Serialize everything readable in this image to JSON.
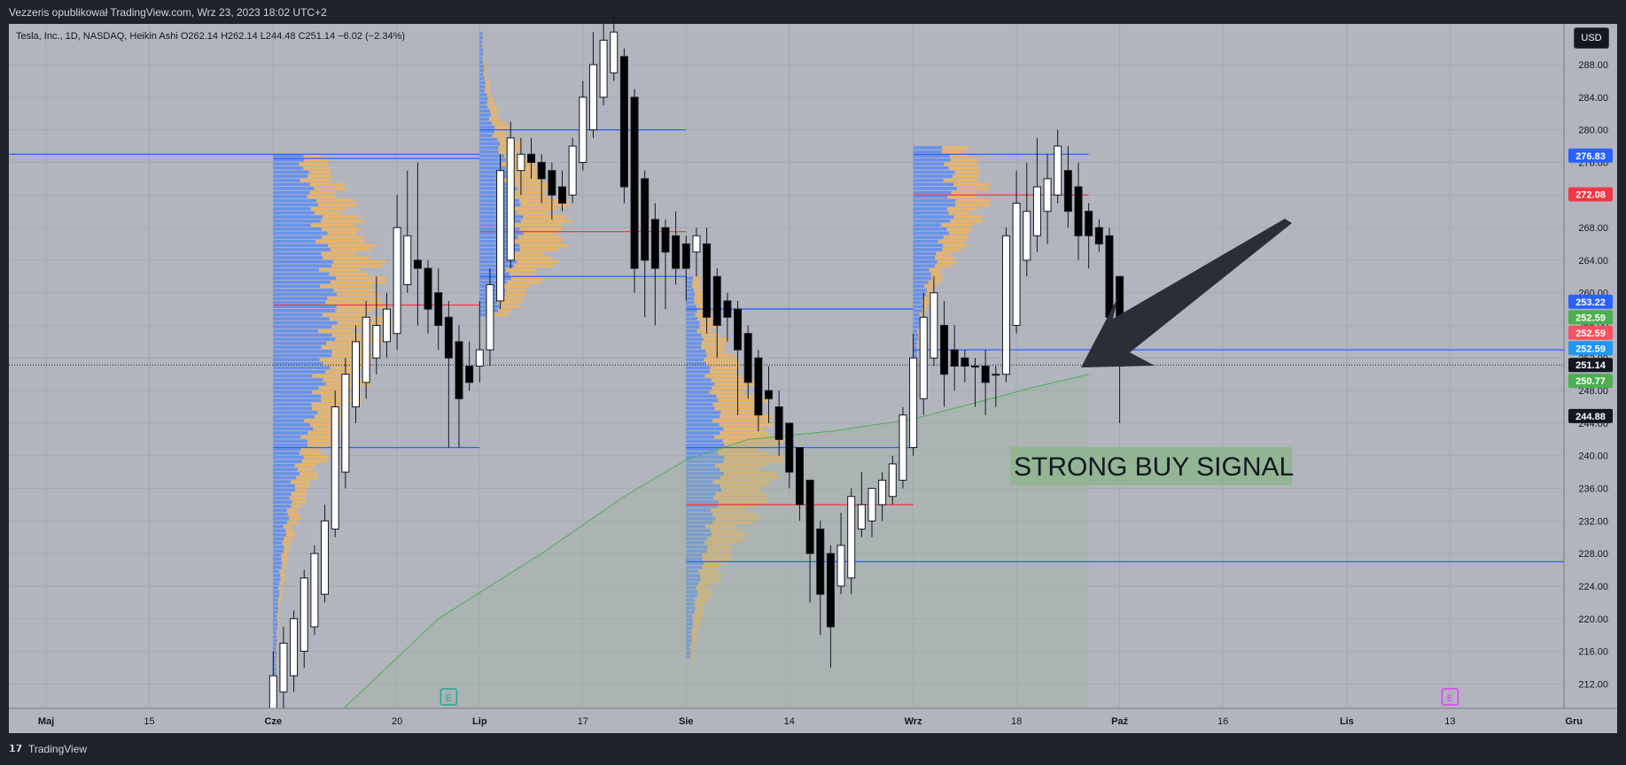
{
  "header": {
    "published_text": "Vezzeris opublikował TradingView.com, Wrz 23, 2023 18:02 UTC+2"
  },
  "legend": {
    "text": "Tesla, Inc., 1D, NASDAQ, Heikin Ashi  O262.14  H262.14  L244.48  C251.14  −6.02 (−2.34%)"
  },
  "currency_button": "USD",
  "footer": {
    "logo": "𝟭𝟳",
    "brand": "TradingView"
  },
  "annotation": {
    "text": "STRONG BUY SIGNAL"
  },
  "event_markers": [
    {
      "label": "E",
      "date_index": 39
    },
    {
      "label": "E",
      "date_index": 136
    }
  ],
  "colors": {
    "up_candle": "#ffffff",
    "down_candle": "#000000",
    "hline_blue": "#2962ff",
    "hline_red": "#f23645",
    "volume_blue": "#5b8cf5",
    "volume_orange": "#f0b45a",
    "ma_green": "#4caf50",
    "arrow": "#2a2e39",
    "annotation_bg": "#8fb58f"
  },
  "chart_data": {
    "type": "candlestick",
    "y_axis": {
      "min": 209,
      "max": 293,
      "ticks": [
        212,
        216,
        220,
        224,
        228,
        232,
        236,
        240,
        244,
        248,
        252,
        256,
        260,
        264,
        268,
        272,
        276,
        280,
        284,
        288
      ],
      "tick_labels": [
        "212.00",
        "216.00",
        "220.00",
        "224.00",
        "228.00",
        "232.00",
        "236.00",
        "240.00",
        "244.00",
        "248.00",
        "252.00",
        "256.00",
        "260.00",
        "264.00",
        "268.00",
        "272.00",
        "276.00",
        "280.00",
        "284.00",
        "288.00"
      ]
    },
    "x_axis": {
      "labels": [
        {
          "label": "Maj",
          "date_index": 0,
          "bold": true
        },
        {
          "label": "15",
          "date_index": 10,
          "bold": false
        },
        {
          "label": "Cze",
          "date_index": 22,
          "bold": true
        },
        {
          "label": "20",
          "date_index": 34,
          "bold": false
        },
        {
          "label": "Lip",
          "date_index": 42,
          "bold": true
        },
        {
          "label": "17",
          "date_index": 52,
          "bold": false
        },
        {
          "label": "Sie",
          "date_index": 62,
          "bold": true
        },
        {
          "label": "14",
          "date_index": 72,
          "bold": false
        },
        {
          "label": "Wrz",
          "date_index": 84,
          "bold": true
        },
        {
          "label": "18",
          "date_index": 94,
          "bold": false
        },
        {
          "label": "Paź",
          "date_index": 104,
          "bold": true
        },
        {
          "label": "16",
          "date_index": 114,
          "bold": false
        },
        {
          "label": "Lis",
          "date_index": 126,
          "bold": true
        },
        {
          "label": "13",
          "date_index": 136,
          "bold": false
        },
        {
          "label": "Gru",
          "date_index": 148,
          "bold": true
        }
      ]
    },
    "candles": [
      {
        "o": 208,
        "h": 216,
        "l": 205,
        "c": 213
      },
      {
        "o": 211,
        "h": 219,
        "l": 209,
        "c": 217
      },
      {
        "o": 213,
        "h": 221,
        "l": 211,
        "c": 220
      },
      {
        "o": 216,
        "h": 226,
        "l": 214,
        "c": 225
      },
      {
        "o": 219,
        "h": 229,
        "l": 218,
        "c": 228
      },
      {
        "o": 223,
        "h": 234,
        "l": 222,
        "c": 232
      },
      {
        "o": 231,
        "h": 248,
        "l": 230,
        "c": 246
      },
      {
        "o": 238,
        "h": 252,
        "l": 236,
        "c": 250
      },
      {
        "o": 246,
        "h": 256,
        "l": 244,
        "c": 254
      },
      {
        "o": 249,
        "h": 259,
        "l": 247,
        "c": 257
      },
      {
        "o": 252,
        "h": 262,
        "l": 250,
        "c": 256
      },
      {
        "o": 254,
        "h": 260,
        "l": 252,
        "c": 258
      },
      {
        "o": 255,
        "h": 272,
        "l": 253,
        "c": 268
      },
      {
        "o": 261,
        "h": 275,
        "l": 260,
        "c": 267
      },
      {
        "o": 264,
        "h": 276,
        "l": 256,
        "c": 263
      },
      {
        "o": 263,
        "h": 264,
        "l": 255,
        "c": 258
      },
      {
        "o": 260,
        "h": 263,
        "l": 253,
        "c": 256
      },
      {
        "o": 257,
        "h": 259,
        "l": 241,
        "c": 252
      },
      {
        "o": 254,
        "h": 256,
        "l": 241,
        "c": 247
      },
      {
        "o": 251,
        "h": 254,
        "l": 248,
        "c": 249
      },
      {
        "o": 251,
        "h": 259,
        "l": 249,
        "c": 253
      },
      {
        "o": 253,
        "h": 263,
        "l": 251,
        "c": 261
      },
      {
        "o": 259,
        "h": 277,
        "l": 258,
        "c": 275
      },
      {
        "o": 264,
        "h": 281,
        "l": 263,
        "c": 279
      },
      {
        "o": 275,
        "h": 279,
        "l": 272,
        "c": 277
      },
      {
        "o": 277,
        "h": 279,
        "l": 274,
        "c": 276
      },
      {
        "o": 276,
        "h": 277,
        "l": 271,
        "c": 274
      },
      {
        "o": 275,
        "h": 276,
        "l": 269,
        "c": 272
      },
      {
        "o": 273,
        "h": 275,
        "l": 270,
        "c": 271
      },
      {
        "o": 272,
        "h": 279,
        "l": 271,
        "c": 278
      },
      {
        "o": 276,
        "h": 286,
        "l": 275,
        "c": 284
      },
      {
        "o": 280,
        "h": 292,
        "l": 279,
        "c": 288
      },
      {
        "o": 284,
        "h": 293,
        "l": 283,
        "c": 291
      },
      {
        "o": 287,
        "h": 294,
        "l": 286,
        "c": 292
      },
      {
        "o": 289,
        "h": 290,
        "l": 271,
        "c": 273
      },
      {
        "o": 284,
        "h": 285,
        "l": 260,
        "c": 263
      },
      {
        "o": 274,
        "h": 275,
        "l": 257,
        "c": 264
      },
      {
        "o": 269,
        "h": 271,
        "l": 256,
        "c": 263
      },
      {
        "o": 268,
        "h": 269,
        "l": 258,
        "c": 265
      },
      {
        "o": 267,
        "h": 270,
        "l": 261,
        "c": 263
      },
      {
        "o": 266,
        "h": 267,
        "l": 259,
        "c": 263
      },
      {
        "o": 265,
        "h": 268,
        "l": 262,
        "c": 267
      },
      {
        "o": 266,
        "h": 268,
        "l": 255,
        "c": 257
      },
      {
        "o": 262,
        "h": 263,
        "l": 252,
        "c": 256
      },
      {
        "o": 259,
        "h": 260,
        "l": 254,
        "c": 257
      },
      {
        "o": 258,
        "h": 259,
        "l": 245,
        "c": 253
      },
      {
        "o": 255,
        "h": 256,
        "l": 247,
        "c": 249
      },
      {
        "o": 252,
        "h": 253,
        "l": 243,
        "c": 245
      },
      {
        "o": 248,
        "h": 251,
        "l": 244,
        "c": 247
      },
      {
        "o": 246,
        "h": 248,
        "l": 240,
        "c": 242
      },
      {
        "o": 244,
        "h": 244,
        "l": 236,
        "c": 238
      },
      {
        "o": 241,
        "h": 241,
        "l": 232,
        "c": 234
      },
      {
        "o": 237,
        "h": 237,
        "l": 222,
        "c": 228
      },
      {
        "o": 231,
        "h": 232,
        "l": 218,
        "c": 223
      },
      {
        "o": 228,
        "h": 229,
        "l": 214,
        "c": 219
      },
      {
        "o": 224,
        "h": 233,
        "l": 223,
        "c": 229
      },
      {
        "o": 225,
        "h": 236,
        "l": 223,
        "c": 235
      },
      {
        "o": 231,
        "h": 238,
        "l": 230,
        "c": 234
      },
      {
        "o": 232,
        "h": 236,
        "l": 230,
        "c": 236
      },
      {
        "o": 234,
        "h": 238,
        "l": 232,
        "c": 237
      },
      {
        "o": 235,
        "h": 240,
        "l": 234,
        "c": 239
      },
      {
        "o": 237,
        "h": 246,
        "l": 236,
        "c": 245
      },
      {
        "o": 241,
        "h": 255,
        "l": 240,
        "c": 252
      },
      {
        "o": 247,
        "h": 260,
        "l": 245,
        "c": 257
      },
      {
        "o": 252,
        "h": 262,
        "l": 251,
        "c": 260
      },
      {
        "o": 256,
        "h": 259,
        "l": 246,
        "c": 250
      },
      {
        "o": 253,
        "h": 256,
        "l": 248,
        "c": 251
      },
      {
        "o": 252,
        "h": 253,
        "l": 249,
        "c": 251
      },
      {
        "o": 251,
        "h": 252,
        "l": 246,
        "c": 251
      },
      {
        "o": 251,
        "h": 253,
        "l": 245,
        "c": 249
      },
      {
        "o": 250,
        "h": 251,
        "l": 246,
        "c": 250
      },
      {
        "o": 250,
        "h": 268,
        "l": 249,
        "c": 267
      },
      {
        "o": 256,
        "h": 275,
        "l": 255,
        "c": 271
      },
      {
        "o": 264,
        "h": 276,
        "l": 262,
        "c": 270
      },
      {
        "o": 267,
        "h": 279,
        "l": 265,
        "c": 273
      },
      {
        "o": 270,
        "h": 277,
        "l": 266,
        "c": 274
      },
      {
        "o": 272,
        "h": 280,
        "l": 271,
        "c": 278
      },
      {
        "o": 275,
        "h": 278,
        "l": 268,
        "c": 270
      },
      {
        "o": 273,
        "h": 276,
        "l": 264,
        "c": 267
      },
      {
        "o": 270,
        "h": 271,
        "l": 263,
        "c": 267
      },
      {
        "o": 268,
        "h": 269,
        "l": 265,
        "c": 266
      },
      {
        "o": 267,
        "h": 268,
        "l": 253,
        "c": 257
      },
      {
        "o": 262,
        "h": 262,
        "l": 244,
        "c": 251
      }
    ],
    "candle_start_index": 22,
    "moving_average": {
      "name": "",
      "values": [
        {
          "i": 28,
          "v": 208
        },
        {
          "i": 38,
          "v": 220
        },
        {
          "i": 48,
          "v": 228
        },
        {
          "i": 56,
          "v": 235
        },
        {
          "i": 62,
          "v": 239.5
        },
        {
          "i": 68,
          "v": 242
        },
        {
          "i": 76,
          "v": 243
        },
        {
          "i": 84,
          "v": 244.5
        },
        {
          "i": 90,
          "v": 246.5
        },
        {
          "i": 96,
          "v": 248.5
        },
        {
          "i": 101,
          "v": 250
        }
      ]
    },
    "horizontal_lines": [
      {
        "color": "blue",
        "y": 277,
        "from": -1,
        "to": 42
      },
      {
        "color": "blue",
        "y": 276.5,
        "from": 22,
        "to": 42
      },
      {
        "color": "blue",
        "y": 241,
        "from": 22,
        "to": 42
      },
      {
        "color": "red",
        "y": 258.5,
        "from": 22,
        "to": 42
      },
      {
        "color": "blue",
        "y": 280,
        "from": 42,
        "to": 62
      },
      {
        "color": "blue",
        "y": 262,
        "from": 42,
        "to": 62
      },
      {
        "color": "red",
        "y": 267.5,
        "from": 42,
        "to": 62
      },
      {
        "color": "blue",
        "y": 241,
        "from": 62,
        "to": 84
      },
      {
        "color": "blue",
        "y": 258,
        "from": 62,
        "to": 84
      },
      {
        "color": "red",
        "y": 234,
        "from": 62,
        "to": 84
      },
      {
        "color": "blue",
        "y": 227,
        "from": 62,
        "to": 152
      },
      {
        "color": "blue",
        "y": 277,
        "from": 84,
        "to": 101
      },
      {
        "color": "red",
        "y": 272,
        "from": 84,
        "to": 101
      },
      {
        "color": "blue",
        "y": 253,
        "from": 84,
        "to": 152
      }
    ],
    "volume_profiles": [
      {
        "start": 22,
        "top": 277,
        "bottom": 210,
        "peak": 258,
        "width_blue": 6,
        "width_orange": 5.5
      },
      {
        "start": 42,
        "top": 292,
        "bottom": 257,
        "peak": 268,
        "width_blue": 4,
        "width_orange": 5
      },
      {
        "start": 62,
        "top": 262,
        "bottom": 215,
        "peak": 240,
        "width_blue": 3.5,
        "width_orange": 6
      },
      {
        "start": 84,
        "top": 278,
        "bottom": 244,
        "peak": 272,
        "width_blue": 4,
        "width_orange": 3.5
      }
    ],
    "price_labels": [
      {
        "value": "276.83",
        "y": 276.83,
        "bg": "#2962ff",
        "fg": "#ffffff"
      },
      {
        "value": "272.08",
        "y": 272.08,
        "bg": "#f23645",
        "fg": "#ffffff"
      },
      {
        "value": "253.22",
        "y": 258.9,
        "bg": "#2962ff",
        "fg": "#ffffff"
      },
      {
        "value": "252.59",
        "y": 257.0,
        "bg": "#4caf50",
        "fg": "#ffffff"
      },
      {
        "value": "252.59",
        "y": 255.1,
        "bg": "#f7525f",
        "fg": "#ffffff"
      },
      {
        "value": "252.59",
        "y": 253.2,
        "bg": "#2196f3",
        "fg": "#ffffff"
      },
      {
        "value": "251.14",
        "y": 251.14,
        "bg": "#131722",
        "fg": "#ffffff"
      },
      {
        "value": "250.77",
        "y": 249.2,
        "bg": "#4caf50",
        "fg": "#ffffff"
      },
      {
        "value": "244.88",
        "y": 244.88,
        "bg": "#131722",
        "fg": "#ffffff"
      }
    ],
    "current_price": 251.14
  }
}
